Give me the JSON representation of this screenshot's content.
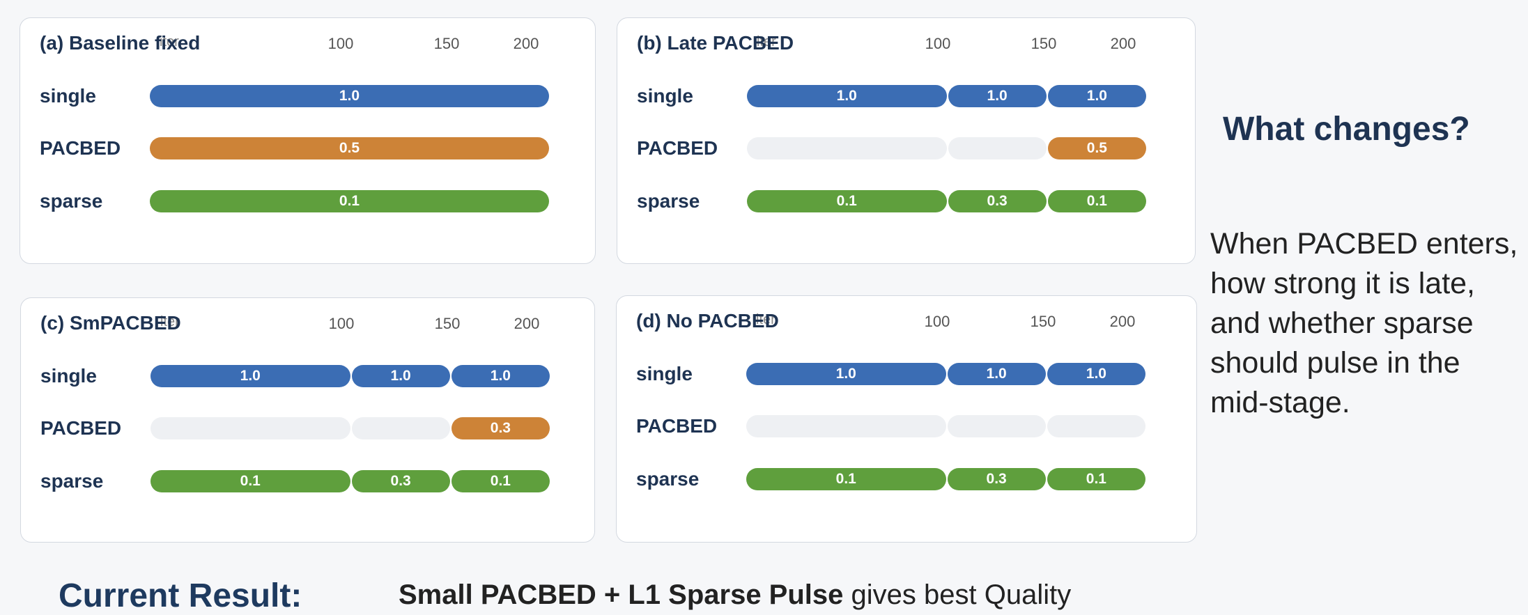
{
  "panels": [
    {
      "title": "(a) Baseline fixed",
      "axis_label": "iter",
      "ticks": [
        "100",
        "150",
        "200"
      ],
      "rows": [
        {
          "name": "single",
          "segments": [
            "1.0"
          ]
        },
        {
          "name": "PACBED",
          "segments": [
            "0.5"
          ]
        },
        {
          "name": "sparse",
          "segments": [
            "0.1"
          ]
        }
      ]
    },
    {
      "title": "(b) Late PACBED",
      "axis_label": "iter",
      "ticks": [
        "100",
        "150",
        "200"
      ],
      "rows": [
        {
          "name": "single",
          "segments": [
            "1.0",
            "1.0",
            "1.0"
          ]
        },
        {
          "name": "PACBED",
          "segments": [
            null,
            null,
            "0.5"
          ]
        },
        {
          "name": "sparse",
          "segments": [
            "0.1",
            "0.3",
            "0.1"
          ]
        }
      ]
    },
    {
      "title": "(c) SmPACBED",
      "axis_label": "iter",
      "ticks": [
        "100",
        "150",
        "200"
      ],
      "rows": [
        {
          "name": "single",
          "segments": [
            "1.0",
            "1.0",
            "1.0"
          ]
        },
        {
          "name": "PACBED",
          "segments": [
            null,
            null,
            "0.3"
          ]
        },
        {
          "name": "sparse",
          "segments": [
            "0.1",
            "0.3",
            "0.1"
          ]
        }
      ]
    },
    {
      "title": "(d) No PACBED",
      "axis_label": "iter",
      "ticks": [
        "100",
        "150",
        "200"
      ],
      "rows": [
        {
          "name": "single",
          "segments": [
            "1.0",
            "1.0",
            "1.0"
          ]
        },
        {
          "name": "PACBED",
          "segments": [
            null,
            null,
            null
          ]
        },
        {
          "name": "sparse",
          "segments": [
            "0.1",
            "0.3",
            "0.1"
          ]
        }
      ]
    }
  ],
  "side": {
    "heading": "What changes?",
    "text": "When PACBED enters, how strong it is late, and whether sparse should pulse in the mid-stage."
  },
  "footer": {
    "label": "Current Result:",
    "highlight": "Small PACBED + L1 Sparse Pulse",
    "rest": " gives best Quality"
  }
}
